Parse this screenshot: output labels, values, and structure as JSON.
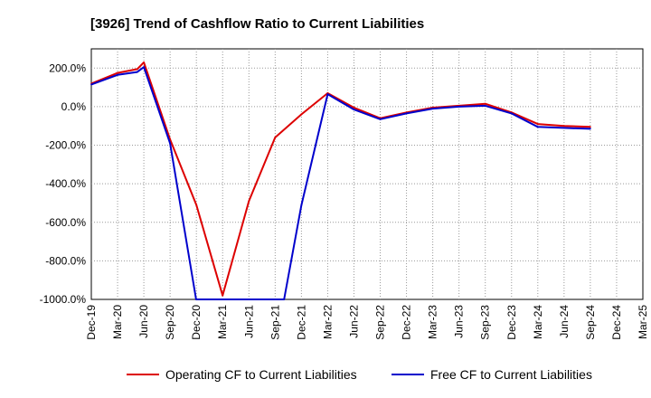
{
  "chart_data": {
    "type": "line",
    "title": "[3926]  Trend of Cashflow Ratio to Current Liabilities",
    "xlabel": "",
    "ylabel": "",
    "ylim": [
      -1000,
      300
    ],
    "yticks": [
      200,
      0,
      -200,
      -400,
      -600,
      -800,
      -1000
    ],
    "ytick_labels": [
      "200.0%",
      "0.0%",
      "-200.0%",
      "-400.0%",
      "-600.0%",
      "-800.0%",
      "-1000.0%"
    ],
    "categories": [
      "Dec-19",
      "Mar-20",
      "Jun-20",
      "Sep-20",
      "Dec-20",
      "Mar-21",
      "Jun-21",
      "Sep-21",
      "Dec-21",
      "Mar-22",
      "Jun-22",
      "Sep-22",
      "Dec-22",
      "Mar-23",
      "Jun-23",
      "Sep-23",
      "Dec-23",
      "Mar-24",
      "Jun-24",
      "Sep-24",
      "Dec-24",
      "Mar-25"
    ],
    "grid": true,
    "legend_position": "bottom",
    "series": [
      {
        "name": "Operating CF to Current Liabilities",
        "color": "#dd0000",
        "points": [
          [
            0,
            120
          ],
          [
            1,
            175
          ],
          [
            1.75,
            195
          ],
          [
            2,
            230
          ],
          [
            3,
            -170
          ],
          [
            4,
            -510
          ],
          [
            5,
            -980
          ],
          [
            6,
            -490
          ],
          [
            7,
            -160
          ],
          [
            8,
            -40
          ],
          [
            9,
            70
          ],
          [
            10,
            -5
          ],
          [
            11,
            -60
          ],
          [
            12,
            -30
          ],
          [
            13,
            -5
          ],
          [
            14,
            5
          ],
          [
            15,
            15
          ],
          [
            16,
            -30
          ],
          [
            17,
            -90
          ],
          [
            18,
            -100
          ],
          [
            19,
            -105
          ]
        ]
      },
      {
        "name": "Free CF to Current Liabilities",
        "color": "#0000cc",
        "points": [
          [
            0,
            115
          ],
          [
            1,
            165
          ],
          [
            1.75,
            180
          ],
          [
            2,
            205
          ],
          [
            3,
            -190
          ],
          [
            3.99,
            -1000
          ],
          [
            7.34,
            -1000
          ],
          [
            8,
            -510
          ],
          [
            9,
            65
          ],
          [
            10,
            -15
          ],
          [
            11,
            -65
          ],
          [
            12,
            -35
          ],
          [
            13,
            -10
          ],
          [
            14,
            0
          ],
          [
            15,
            5
          ],
          [
            16,
            -35
          ],
          [
            17,
            -105
          ],
          [
            18,
            -110
          ],
          [
            19,
            -115
          ]
        ]
      }
    ]
  }
}
